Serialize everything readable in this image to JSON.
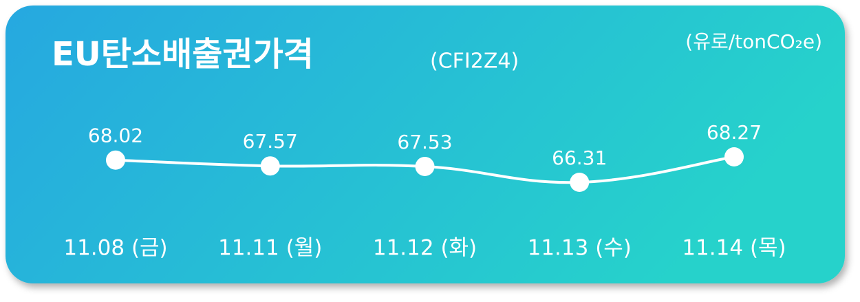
{
  "chart_data": {
    "type": "line",
    "title": "EU탄소배출권가격",
    "subtitle": "(CFI2Z4)",
    "unit": "(유로/tonCO₂e)",
    "categories": [
      "11.08 (금)",
      "11.11 (월)",
      "11.12 (화)",
      "11.13 (수)",
      "11.14 (목)"
    ],
    "values": [
      68.02,
      67.57,
      67.53,
      66.31,
      68.27
    ],
    "color": "#ffffff"
  }
}
